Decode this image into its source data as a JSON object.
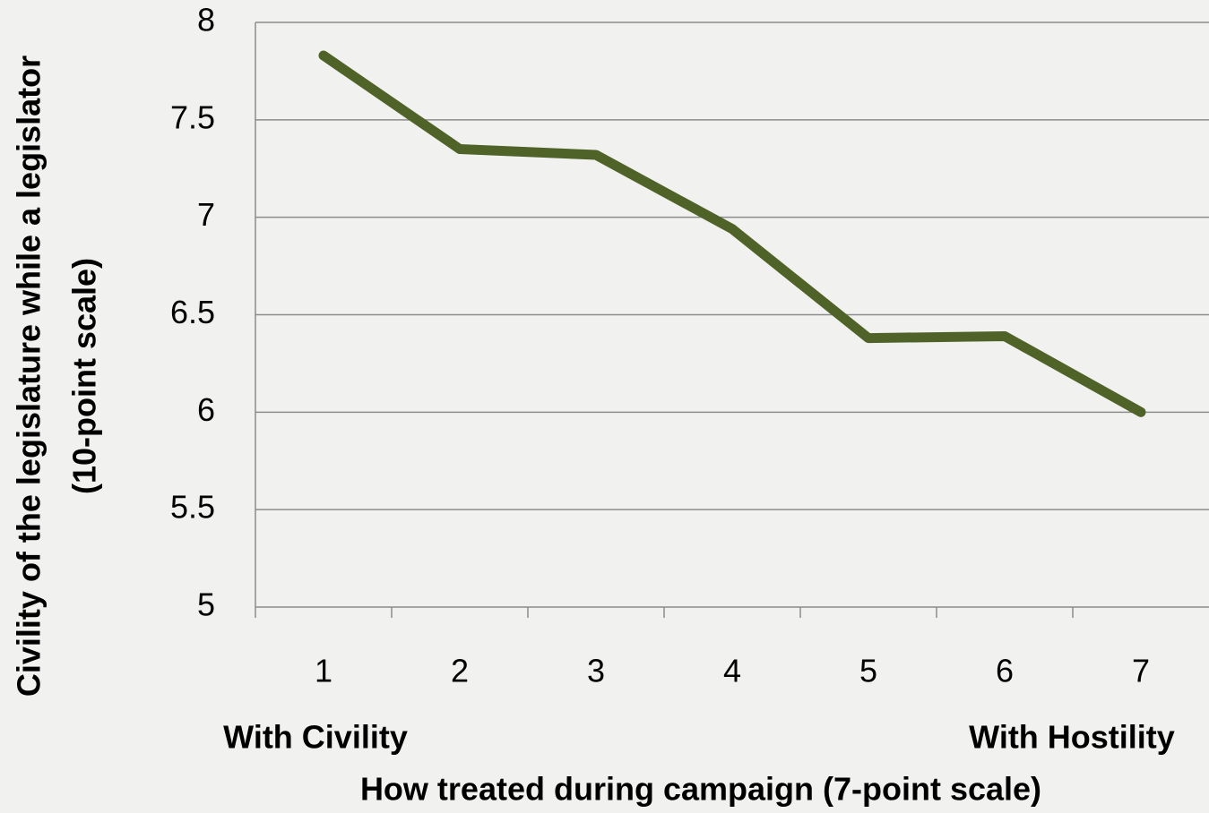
{
  "chart_data": {
    "type": "line",
    "categories": [
      "1",
      "2",
      "3",
      "4",
      "5",
      "6",
      "7"
    ],
    "values": [
      7.83,
      7.35,
      7.32,
      6.94,
      6.38,
      6.39,
      6.0
    ],
    "color": "#4f6228",
    "ylim": [
      5,
      8
    ],
    "yticks": [
      5,
      5.5,
      6,
      6.5,
      7,
      7.5,
      8
    ],
    "grid": true,
    "y_label": [
      "Civility of the legislature while a legislator",
      "(10-point scale)"
    ],
    "x_label": "How treated during campaign (7-point scale)",
    "annotations": [
      "With Civility",
      "With Hostility"
    ]
  }
}
